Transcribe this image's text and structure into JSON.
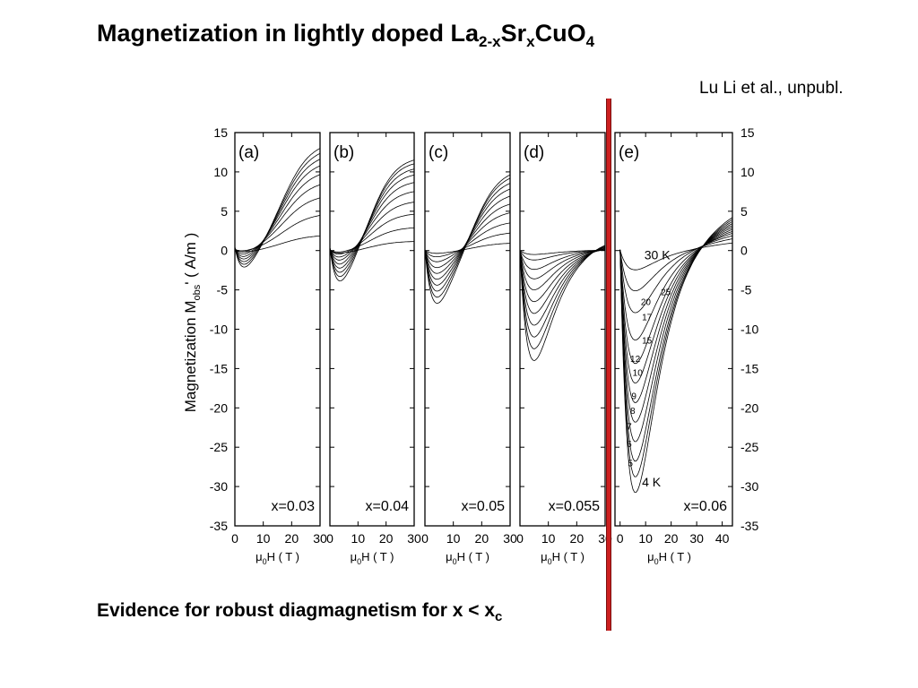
{
  "slide": {
    "title_main": "Magnetization in lightly doped La",
    "title_sub1": "2-x",
    "title_mid1": "Sr",
    "title_sub2": "x",
    "title_mid2": "CuO",
    "title_sub3": "4",
    "credit": "Lu Li et al., unpubl.",
    "caption_main": "Evidence for robust diagmagnetism for x < x",
    "caption_sub": "c"
  },
  "colors": {
    "marker": "#cc1f1f",
    "ink": "#000000"
  },
  "chart_data": {
    "type": "line",
    "ylabel": "Magnetization M",
    "ylabel_sub": "obs",
    "ylabel_tail": "' ( A/m )",
    "xlabel_prefix": "μ",
    "xlabel_sub": "0",
    "xlabel_tail": "H ( T )",
    "ylim": [
      -35,
      15
    ],
    "yticks": [
      15,
      10,
      5,
      0,
      -5,
      -10,
      -15,
      -20,
      -25,
      -30,
      -35
    ],
    "panels": [
      {
        "tag": "(a)",
        "doping": "x=0.03",
        "xlim": [
          0,
          30
        ],
        "xticks": [
          0,
          10,
          20,
          30
        ],
        "family": {
          "A": [
            -3.0,
            -2.6,
            -2.2,
            -1.8,
            -1.4,
            -1.0,
            -0.6,
            -0.3
          ],
          "B": [
            14.0,
            13.3,
            12.5,
            11.6,
            10.4,
            9.0,
            7.2,
            4.8,
            2.0
          ],
          "x0": 4.0,
          "w": 2.8,
          "x1": 17.0,
          "w1": 5.0
        }
      },
      {
        "tag": "(b)",
        "doping": "x=0.04",
        "xlim": [
          0,
          30
        ],
        "xticks": [
          0,
          10,
          20,
          30
        ],
        "family": {
          "A": [
            -4.8,
            -4.2,
            -3.6,
            -3.0,
            -2.4,
            -1.8,
            -1.3,
            -0.8,
            -0.4
          ],
          "B": [
            12.0,
            11.5,
            10.8,
            10.0,
            9.0,
            7.8,
            6.4,
            4.8,
            3.0,
            1.2
          ],
          "x0": 4.2,
          "w": 2.6,
          "x1": 15.0,
          "w1": 4.5
        }
      },
      {
        "tag": "(c)",
        "doping": "x=0.05",
        "xlim": [
          0,
          30
        ],
        "xticks": [
          0,
          10,
          20,
          30
        ],
        "family": {
          "A": [
            -7.2,
            -6.4,
            -5.6,
            -4.8,
            -4.0,
            -3.2,
            -2.4,
            -1.6,
            -0.9,
            -0.4
          ],
          "B": [
            10.5,
            10.0,
            9.3,
            8.5,
            7.5,
            6.4,
            5.2,
            3.8,
            2.4,
            1.0
          ],
          "x0": 4.6,
          "w": 3.0,
          "x1": 18.0,
          "w1": 4.5
        }
      },
      {
        "tag": "(d)",
        "doping": "x=0.055",
        "xlim": [
          0,
          30
        ],
        "xticks": [
          0,
          10,
          20,
          30
        ],
        "family": {
          "A": [
            -14.0,
            -12.5,
            -11.0,
            -9.5,
            -8.0,
            -6.5,
            -5.0,
            -3.6,
            -2.4,
            -1.2,
            -0.5
          ],
          "B": [
            1.5,
            1.3,
            1.1,
            0.9,
            0.7,
            0.5,
            0.4,
            0.3,
            0.2,
            0.1
          ],
          "x0": 5.0,
          "w": 4.0,
          "x1": 24.0,
          "w1": 4.0
        }
      },
      {
        "tag": "(e)",
        "doping": "x=0.06",
        "xlim": [
          -2,
          44
        ],
        "xticks": [
          0,
          10,
          20,
          30,
          40
        ],
        "family": {
          "A": [
            -31.0,
            -29.0,
            -27.0,
            -24.5,
            -22.0,
            -19.5,
            -17.0,
            -14.5,
            -11.5,
            -8.0,
            -5.2,
            -2.5
          ],
          "B": [
            6.5,
            6.1,
            5.7,
            5.3,
            4.9,
            4.5,
            4.1,
            3.7,
            3.3,
            2.8,
            2.2,
            1.4
          ],
          "x0": 6.0,
          "w": 6.0,
          "x1": 36.0,
          "w1": 9.0
        },
        "temperatures": [
          "4 K",
          "5",
          "6",
          "7",
          "8",
          "9",
          "10",
          "12",
          "15",
          "17",
          "20",
          "25",
          "30 K"
        ]
      }
    ]
  }
}
